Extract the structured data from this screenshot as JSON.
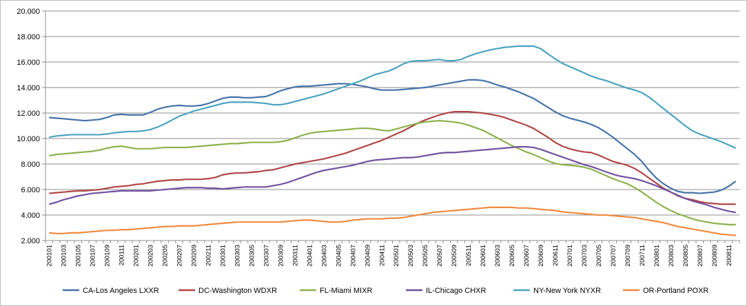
{
  "chart_data": {
    "type": "line",
    "title": "",
    "xlabel": "",
    "ylabel": "",
    "ylim": [
      2000,
      20000
    ],
    "y_ticks": [
      "2.000",
      "4.000",
      "6.000",
      "8.000",
      "10.000",
      "12.000",
      "14.000",
      "16.000",
      "18.000",
      "20.000"
    ],
    "x": [
      "200101",
      "200102",
      "200103",
      "200104",
      "200105",
      "200106",
      "200107",
      "200108",
      "200109",
      "200110",
      "200111",
      "200112",
      "200201",
      "200202",
      "200203",
      "200204",
      "200205",
      "200206",
      "200207",
      "200208",
      "200209",
      "200210",
      "200211",
      "200212",
      "200301",
      "200302",
      "200303",
      "200304",
      "200305",
      "200306",
      "200307",
      "200308",
      "200309",
      "200310",
      "200311",
      "200312",
      "200401",
      "200402",
      "200403",
      "200404",
      "200405",
      "200406",
      "200407",
      "200408",
      "200409",
      "200410",
      "200411",
      "200412",
      "200501",
      "200502",
      "200503",
      "200504",
      "200505",
      "200506",
      "200507",
      "200508",
      "200509",
      "200510",
      "200511",
      "200512",
      "200601",
      "200602",
      "200603",
      "200604",
      "200605",
      "200606",
      "200607",
      "200608",
      "200609",
      "200610",
      "200611",
      "200612",
      "200701",
      "200702",
      "200703",
      "200704",
      "200705",
      "200706",
      "200707",
      "200708",
      "200709",
      "200710",
      "200711",
      "200712",
      "200801",
      "200802",
      "200803",
      "200804",
      "200805",
      "200806",
      "200807",
      "200808",
      "200809",
      "200810",
      "200811",
      "200812"
    ],
    "x_tick_labels": [
      "200101",
      "200103",
      "200105",
      "200107",
      "200109",
      "200111",
      "200201",
      "200203",
      "200205",
      "200207",
      "200209",
      "200211",
      "200301",
      "200303",
      "200305",
      "200307",
      "200309",
      "200311",
      "200401",
      "200403",
      "200405",
      "200407",
      "200409",
      "200411",
      "200501",
      "200503",
      "200505",
      "200507",
      "200509",
      "200511",
      "200601",
      "200603",
      "200605",
      "200607",
      "200609",
      "200611",
      "200701",
      "200703",
      "200705",
      "200707",
      "200709",
      "200711",
      "200801",
      "200803",
      "200805",
      "200807",
      "200809",
      "200811"
    ],
    "grid": "horizontal",
    "legend": "bottom",
    "series": [
      {
        "name": "CA-Los Angeles LXXR",
        "color": "#4472a8",
        "values": [
          11650,
          11600,
          11550,
          11500,
          11450,
          11400,
          11450,
          11500,
          11650,
          11850,
          11900,
          11850,
          11850,
          11850,
          12050,
          12300,
          12450,
          12550,
          12600,
          12550,
          12550,
          12600,
          12750,
          12950,
          13150,
          13250,
          13250,
          13200,
          13200,
          13250,
          13300,
          13500,
          13750,
          13900,
          14050,
          14100,
          14100,
          14150,
          14200,
          14250,
          14300,
          14300,
          14250,
          14150,
          14050,
          13900,
          13800,
          13800,
          13800,
          13850,
          13900,
          13950,
          14000,
          14100,
          14200,
          14300,
          14400,
          14500,
          14600,
          14600,
          14550,
          14400,
          14200,
          14050,
          13850,
          13650,
          13400,
          13150,
          12800,
          12450,
          12100,
          11800,
          11600,
          11450,
          11300,
          11100,
          10850,
          10500,
          10100,
          9650,
          9200,
          8750,
          8200,
          7500,
          6900,
          6450,
          6100,
          5850,
          5750,
          5750,
          5700,
          5750,
          5800,
          5950,
          6250,
          6650
        ]
      },
      {
        "name": "DC-Washington WDXR",
        "color": "#b04545",
        "values": [
          5700,
          5750,
          5800,
          5850,
          5900,
          5900,
          5950,
          6000,
          6100,
          6200,
          6250,
          6300,
          6400,
          6450,
          6550,
          6650,
          6700,
          6750,
          6750,
          6800,
          6800,
          6800,
          6850,
          6950,
          7150,
          7250,
          7300,
          7300,
          7350,
          7400,
          7500,
          7550,
          7700,
          7850,
          8000,
          8100,
          8200,
          8300,
          8400,
          8550,
          8700,
          8850,
          9050,
          9250,
          9450,
          9650,
          9850,
          10100,
          10350,
          10600,
          10900,
          11200,
          11450,
          11650,
          11850,
          12000,
          12100,
          12100,
          12100,
          12050,
          12000,
          11900,
          11800,
          11650,
          11450,
          11250,
          11050,
          10800,
          10450,
          10100,
          9700,
          9400,
          9200,
          9050,
          8950,
          8900,
          8700,
          8450,
          8200,
          8050,
          7900,
          7650,
          7300,
          6900,
          6500,
          6100,
          5800,
          5500,
          5300,
          5200,
          5050,
          4950,
          4900,
          4850,
          4850,
          4850
        ]
      },
      {
        "name": "FL-Miami MIXR",
        "color": "#8db14b",
        "values": [
          8650,
          8750,
          8800,
          8850,
          8900,
          8950,
          9000,
          9100,
          9250,
          9350,
          9400,
          9300,
          9200,
          9200,
          9200,
          9250,
          9300,
          9300,
          9300,
          9300,
          9350,
          9400,
          9450,
          9500,
          9550,
          9600,
          9600,
          9650,
          9700,
          9700,
          9700,
          9700,
          9750,
          9850,
          10050,
          10250,
          10400,
          10500,
          10550,
          10600,
          10650,
          10700,
          10750,
          10800,
          10800,
          10750,
          10650,
          10600,
          10750,
          10900,
          11050,
          11200,
          11300,
          11350,
          11400,
          11350,
          11300,
          11200,
          11050,
          10850,
          10650,
          10350,
          10050,
          9750,
          9450,
          9200,
          8950,
          8750,
          8500,
          8250,
          8050,
          7950,
          7900,
          7850,
          7750,
          7600,
          7350,
          7100,
          6850,
          6650,
          6450,
          6150,
          5800,
          5400,
          5000,
          4650,
          4350,
          4100,
          3900,
          3700,
          3550,
          3450,
          3350,
          3300,
          3250,
          3250
        ]
      },
      {
        "name": "IL-Chicago CHXR",
        "color": "#7050a0",
        "values": [
          4850,
          5000,
          5200,
          5350,
          5500,
          5600,
          5700,
          5750,
          5800,
          5850,
          5900,
          5900,
          5900,
          5900,
          5900,
          5950,
          6000,
          6050,
          6100,
          6150,
          6150,
          6150,
          6100,
          6100,
          6050,
          6100,
          6150,
          6200,
          6200,
          6200,
          6200,
          6300,
          6400,
          6550,
          6750,
          6950,
          7150,
          7350,
          7500,
          7600,
          7700,
          7800,
          7900,
          8050,
          8200,
          8300,
          8350,
          8400,
          8450,
          8500,
          8500,
          8550,
          8650,
          8750,
          8850,
          8900,
          8900,
          8950,
          9000,
          9050,
          9100,
          9150,
          9200,
          9250,
          9300,
          9350,
          9350,
          9300,
          9150,
          8950,
          8750,
          8550,
          8350,
          8150,
          7950,
          7800,
          7600,
          7400,
          7200,
          7050,
          6950,
          6850,
          6700,
          6500,
          6300,
          6050,
          5800,
          5550,
          5300,
          5100,
          4950,
          4800,
          4600,
          4450,
          4300,
          4200
        ]
      },
      {
        "name": "NY-New York NYXR",
        "color": "#4aa3c1",
        "values": [
          10100,
          10200,
          10250,
          10300,
          10300,
          10300,
          10300,
          10300,
          10350,
          10450,
          10500,
          10550,
          10550,
          10600,
          10700,
          10900,
          11150,
          11450,
          11750,
          11950,
          12150,
          12300,
          12450,
          12600,
          12750,
          12850,
          12850,
          12850,
          12850,
          12800,
          12750,
          12650,
          12650,
          12750,
          12900,
          13050,
          13200,
          13350,
          13500,
          13700,
          13900,
          14100,
          14300,
          14500,
          14750,
          15000,
          15150,
          15300,
          15550,
          15850,
          16050,
          16100,
          16100,
          16150,
          16200,
          16100,
          16100,
          16200,
          16450,
          16650,
          16800,
          16950,
          17050,
          17150,
          17200,
          17250,
          17250,
          17250,
          17050,
          16650,
          16250,
          15900,
          15650,
          15400,
          15150,
          14900,
          14700,
          14550,
          14350,
          14150,
          13950,
          13800,
          13600,
          13250,
          12800,
          12350,
          11900,
          11450,
          11000,
          10600,
          10350,
          10150,
          9950,
          9750,
          9500,
          9250
        ]
      },
      {
        "name": "OR-Portland POXR",
        "color": "#f08a3e",
        "values": [
          2600,
          2550,
          2550,
          2600,
          2600,
          2650,
          2700,
          2750,
          2800,
          2800,
          2850,
          2850,
          2900,
          2950,
          3000,
          3050,
          3100,
          3100,
          3150,
          3150,
          3150,
          3200,
          3250,
          3300,
          3350,
          3400,
          3450,
          3450,
          3450,
          3450,
          3450,
          3450,
          3450,
          3500,
          3550,
          3600,
          3600,
          3550,
          3500,
          3450,
          3450,
          3500,
          3600,
          3650,
          3700,
          3700,
          3700,
          3750,
          3750,
          3800,
          3900,
          4000,
          4100,
          4200,
          4250,
          4300,
          4350,
          4400,
          4450,
          4500,
          4550,
          4600,
          4600,
          4600,
          4600,
          4550,
          4550,
          4500,
          4450,
          4400,
          4350,
          4250,
          4200,
          4150,
          4100,
          4050,
          4000,
          4000,
          3950,
          3900,
          3850,
          3800,
          3700,
          3600,
          3500,
          3400,
          3250,
          3100,
          3000,
          2900,
          2800,
          2700,
          2600,
          2500,
          2450,
          2400
        ]
      }
    ]
  }
}
